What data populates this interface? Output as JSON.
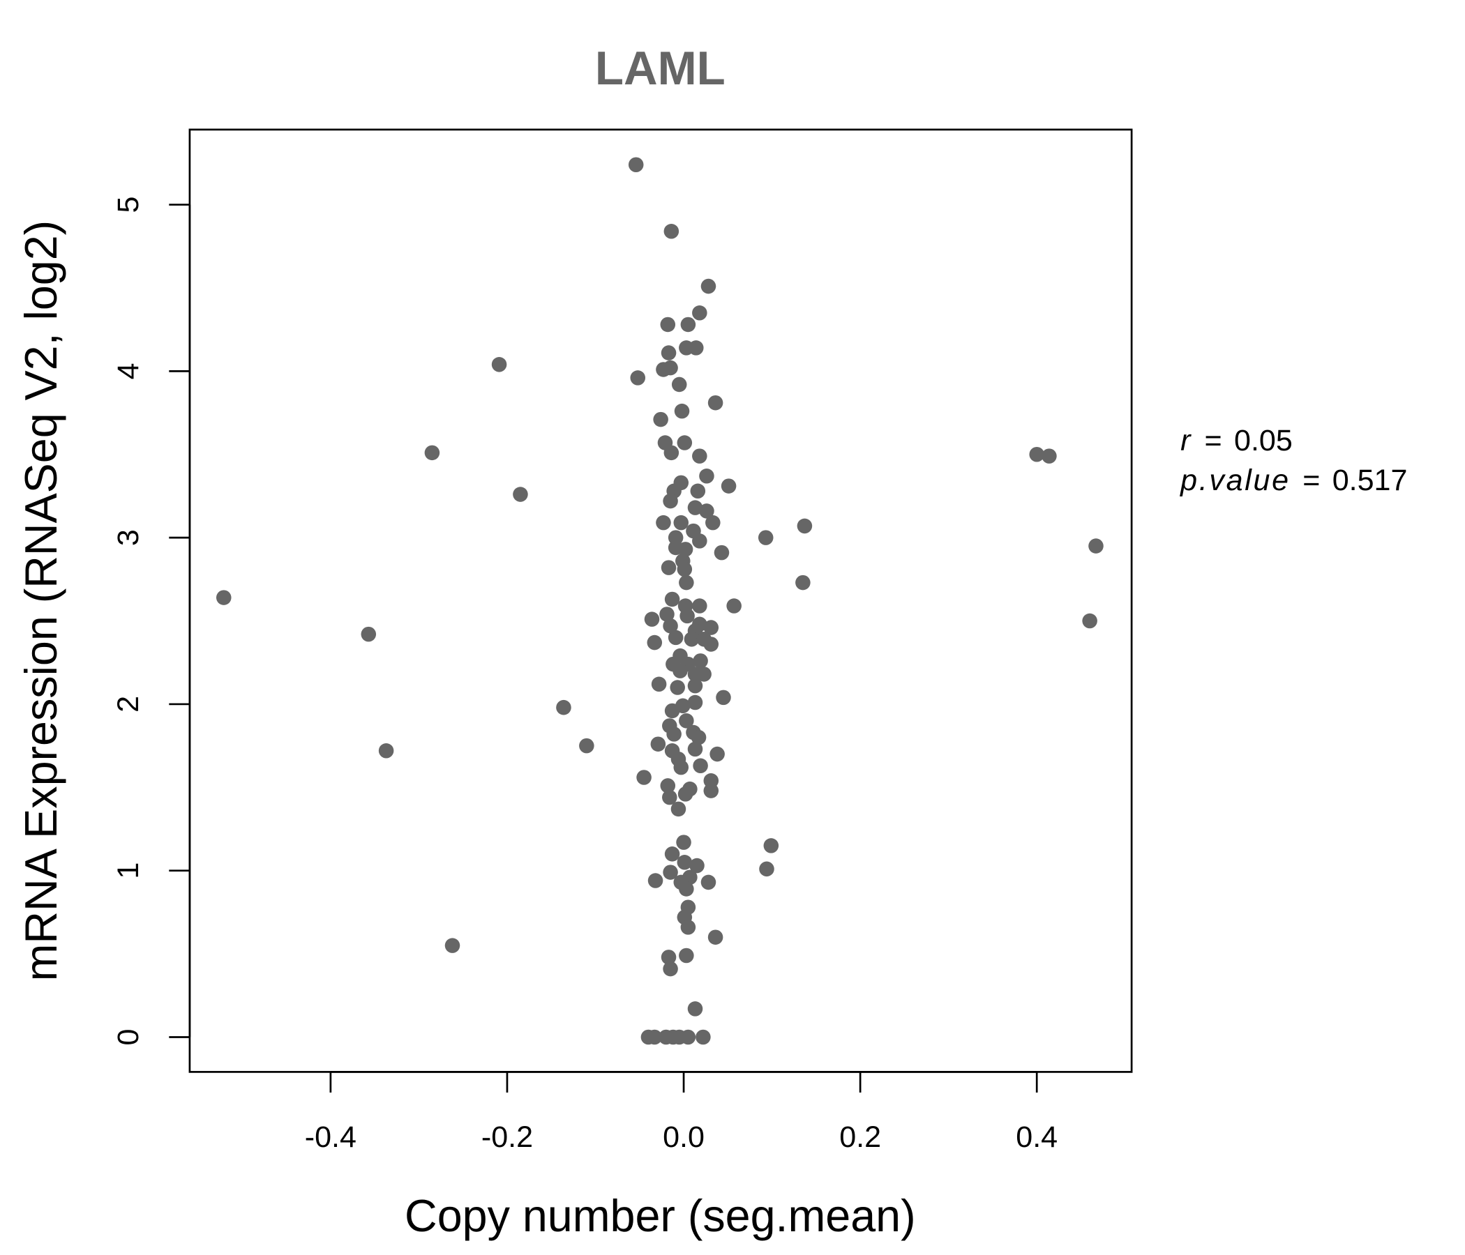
{
  "chart_data": {
    "type": "scatter",
    "title": "LAML",
    "xlabel": "Copy number (seg.mean)",
    "ylabel": "mRNA Expression (RNASeq V2, log2)",
    "xlim": [
      -0.5596,
      0.5074
    ],
    "ylim": [
      -0.209,
      5.451
    ],
    "xticks": [
      -0.4,
      -0.2,
      0.0,
      0.2,
      0.4
    ],
    "xtick_labels": [
      "-0.4",
      "-0.2",
      "0.0",
      "0.2",
      "0.4"
    ],
    "yticks": [
      0,
      1,
      2,
      3,
      4,
      5
    ],
    "ytick_labels": [
      "0",
      "1",
      "2",
      "3",
      "4",
      "5"
    ],
    "grid": false,
    "point_color": "#666666",
    "annotation": {
      "r_label": "r",
      "r_value": "0.05",
      "p_label": "p.value",
      "p_value": "0.517",
      "eq": "="
    },
    "points": [
      [
        -0.521,
        2.64
      ],
      [
        -0.357,
        2.42
      ],
      [
        -0.337,
        1.72
      ],
      [
        -0.285,
        3.51
      ],
      [
        -0.262,
        0.55
      ],
      [
        -0.209,
        4.04
      ],
      [
        -0.185,
        3.26
      ],
      [
        -0.136,
        1.98
      ],
      [
        -0.11,
        1.75
      ],
      [
        -0.054,
        5.24
      ],
      [
        -0.052,
        3.96
      ],
      [
        -0.045,
        1.56
      ],
      [
        -0.014,
        4.84
      ],
      [
        0.028,
        4.51
      ],
      [
        0.018,
        4.35
      ],
      [
        -0.018,
        4.28
      ],
      [
        0.005,
        4.28
      ],
      [
        0.014,
        4.14
      ],
      [
        0.003,
        4.14
      ],
      [
        -0.017,
        4.11
      ],
      [
        -0.023,
        4.01
      ],
      [
        -0.015,
        4.02
      ],
      [
        -0.005,
        3.92
      ],
      [
        0.036,
        3.81
      ],
      [
        -0.002,
        3.76
      ],
      [
        -0.026,
        3.71
      ],
      [
        -0.021,
        3.57
      ],
      [
        0.001,
        3.57
      ],
      [
        -0.014,
        3.51
      ],
      [
        0.018,
        3.49
      ],
      [
        0.026,
        3.37
      ],
      [
        0.051,
        3.31
      ],
      [
        -0.003,
        3.33
      ],
      [
        -0.011,
        3.28
      ],
      [
        0.016,
        3.28
      ],
      [
        -0.015,
        3.22
      ],
      [
        0.013,
        3.18
      ],
      [
        0.026,
        3.16
      ],
      [
        -0.023,
        3.09
      ],
      [
        -0.003,
        3.09
      ],
      [
        0.033,
        3.09
      ],
      [
        0.011,
        3.04
      ],
      [
        -0.009,
        3.0
      ],
      [
        0.018,
        2.98
      ],
      [
        -0.009,
        2.94
      ],
      [
        0.002,
        2.93
      ],
      [
        0.043,
        2.91
      ],
      [
        -0.001,
        2.86
      ],
      [
        -0.017,
        2.82
      ],
      [
        0.001,
        2.81
      ],
      [
        0.003,
        2.73
      ],
      [
        -0.013,
        2.63
      ],
      [
        0.018,
        2.59
      ],
      [
        0.057,
        2.59
      ],
      [
        0.002,
        2.59
      ],
      [
        -0.019,
        2.54
      ],
      [
        0.004,
        2.53
      ],
      [
        -0.036,
        2.51
      ],
      [
        0.018,
        2.48
      ],
      [
        -0.015,
        2.47
      ],
      [
        0.031,
        2.46
      ],
      [
        0.013,
        2.44
      ],
      [
        -0.009,
        2.4
      ],
      [
        0.009,
        2.39
      ],
      [
        0.023,
        2.39
      ],
      [
        -0.033,
        2.37
      ],
      [
        0.031,
        2.36
      ],
      [
        -0.004,
        2.29
      ],
      [
        0.019,
        2.26
      ],
      [
        -0.012,
        2.24
      ],
      [
        0.005,
        2.24
      ],
      [
        -0.004,
        2.2
      ],
      [
        0.013,
        2.18
      ],
      [
        0.023,
        2.18
      ],
      [
        -0.028,
        2.12
      ],
      [
        -0.007,
        2.1
      ],
      [
        0.013,
        2.11
      ],
      [
        0.045,
        2.04
      ],
      [
        0.013,
        2.01
      ],
      [
        -0.001,
        1.99
      ],
      [
        -0.013,
        1.96
      ],
      [
        0.003,
        1.9
      ],
      [
        -0.016,
        1.87
      ],
      [
        0.011,
        1.83
      ],
      [
        -0.011,
        1.82
      ],
      [
        0.017,
        1.8
      ],
      [
        -0.029,
        1.76
      ],
      [
        0.013,
        1.73
      ],
      [
        -0.013,
        1.72
      ],
      [
        0.038,
        1.7
      ],
      [
        -0.006,
        1.67
      ],
      [
        -0.003,
        1.62
      ],
      [
        0.019,
        1.63
      ],
      [
        0.031,
        1.54
      ],
      [
        -0.018,
        1.51
      ],
      [
        0.007,
        1.49
      ],
      [
        0.031,
        1.48
      ],
      [
        -0.016,
        1.44
      ],
      [
        0.002,
        1.46
      ],
      [
        -0.006,
        1.37
      ],
      [
        0.0,
        1.17
      ],
      [
        0.099,
        1.15
      ],
      [
        -0.013,
        1.1
      ],
      [
        0.001,
        1.05
      ],
      [
        0.015,
        1.03
      ],
      [
        0.094,
        1.01
      ],
      [
        -0.015,
        0.99
      ],
      [
        0.007,
        0.96
      ],
      [
        -0.032,
        0.94
      ],
      [
        0.028,
        0.93
      ],
      [
        -0.003,
        0.93
      ],
      [
        0.003,
        0.89
      ],
      [
        0.005,
        0.78
      ],
      [
        0.001,
        0.72
      ],
      [
        0.005,
        0.66
      ],
      [
        0.036,
        0.6
      ],
      [
        -0.017,
        0.48
      ],
      [
        0.003,
        0.49
      ],
      [
        -0.015,
        0.41
      ],
      [
        0.013,
        0.17
      ],
      [
        -0.04,
        0
      ],
      [
        -0.033,
        0
      ],
      [
        -0.02,
        0
      ],
      [
        -0.012,
        0
      ],
      [
        -0.005,
        0
      ],
      [
        0.005,
        0
      ],
      [
        0.022,
        0
      ],
      [
        0.093,
        3.0
      ],
      [
        0.137,
        3.07
      ],
      [
        0.135,
        2.73
      ],
      [
        0.4,
        3.5
      ],
      [
        0.414,
        3.49
      ],
      [
        0.467,
        2.95
      ],
      [
        0.46,
        2.5
      ]
    ]
  }
}
